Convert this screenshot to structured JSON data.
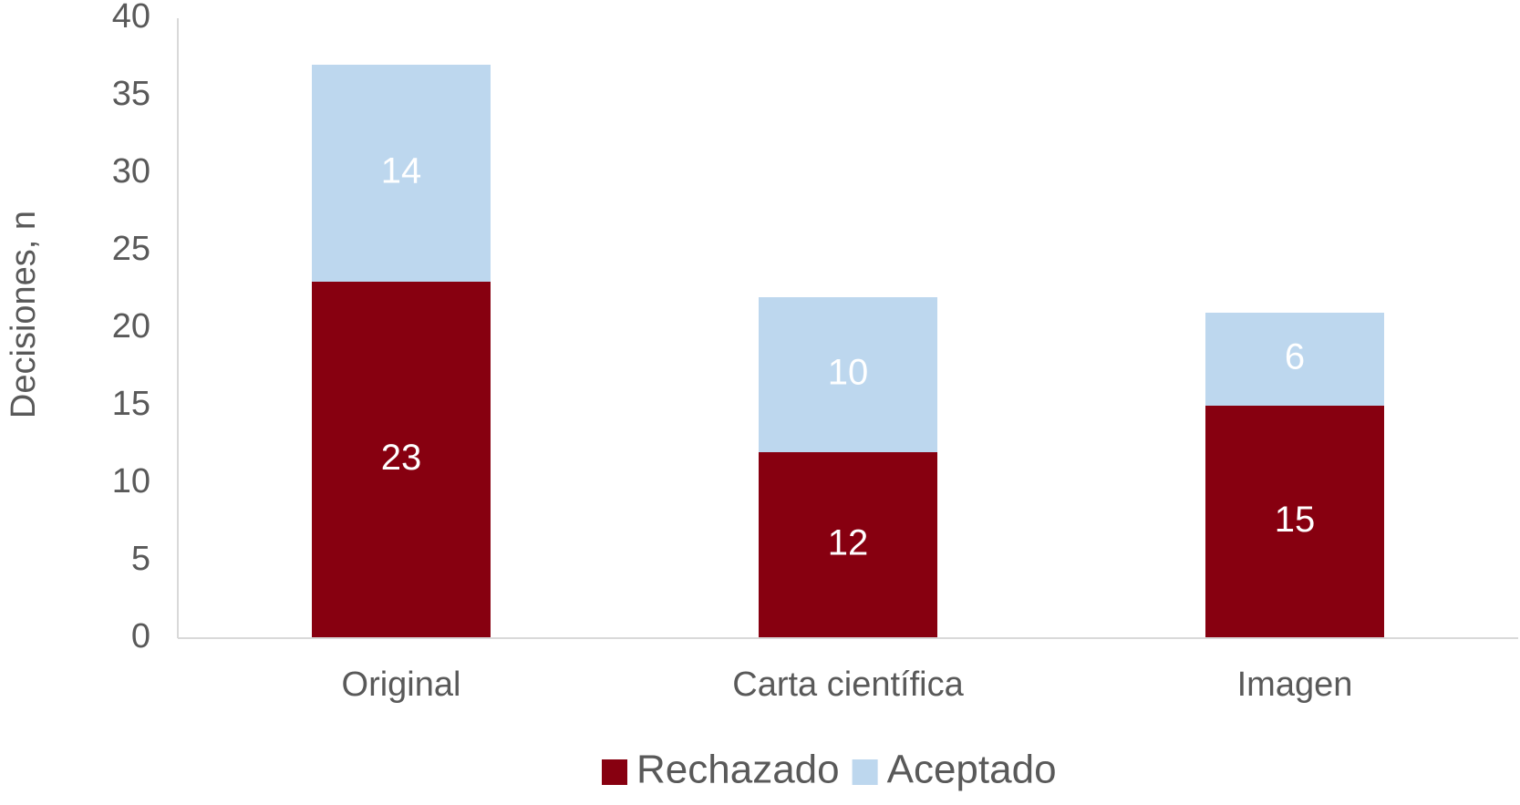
{
  "chart_data": {
    "type": "stacked_bar",
    "y_label": "Decisiones, n",
    "categories": [
      "Original",
      "Carta científica",
      "Imagen"
    ],
    "series": [
      {
        "name": "Rechazado",
        "color": "#870010",
        "values": [
          23,
          12,
          15
        ]
      },
      {
        "name": "Aceptado",
        "color": "#bdd7ee",
        "values": [
          14,
          10,
          6
        ]
      }
    ],
    "ylim": [
      0,
      40
    ],
    "yticks": [
      0,
      5,
      10,
      15,
      20,
      25,
      30,
      35,
      40
    ],
    "grid": false,
    "legend": "bottom"
  }
}
